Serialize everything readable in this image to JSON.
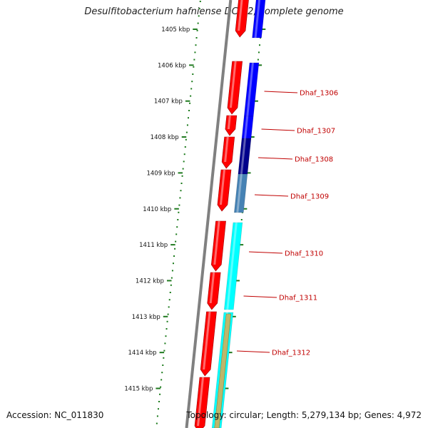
{
  "title": "Desulfitobacterium hafniense DCB-2, complete genome",
  "accession": "Accession: NC_011830",
  "stats": "Topology: circular; Length: 5,279,134 bp; Genes: 4,972",
  "colors": {
    "backbone": "#808080",
    "forward_strand": "#ff0000",
    "gene_label": "#c00000",
    "tick_dots": "#1a7a1a",
    "tick_major": "#1f7a1f",
    "gene_dhaf_1305": "#0000ff",
    "gene_dhaf_1306": "#0000ff",
    "gene_dhaf_1307": "#0000ff",
    "gene_dhaf_1308": "#00008b",
    "gene_dhaf_1309": "#4682b4",
    "gene_dhaf_1310": "#00ffff",
    "gene_dhaf_1311": "#00ffff",
    "gene_dhaf_1312": "#bdb76b"
  },
  "kbp_labels": [
    "1405 kbp",
    "1406 kbp",
    "1407 kbp",
    "1408 kbp",
    "1409 kbp",
    "1410 kbp",
    "1411 kbp",
    "1412 kbp",
    "1413 kbp",
    "1414 kbp",
    "1415 kbp"
  ],
  "gene_labels": [
    "Dhaf_1306",
    "Dhaf_1307",
    "Dhaf_1308",
    "Dhaf_1309",
    "Dhaf_1310",
    "Dhaf_1311",
    "Dhaf_1312"
  ]
}
